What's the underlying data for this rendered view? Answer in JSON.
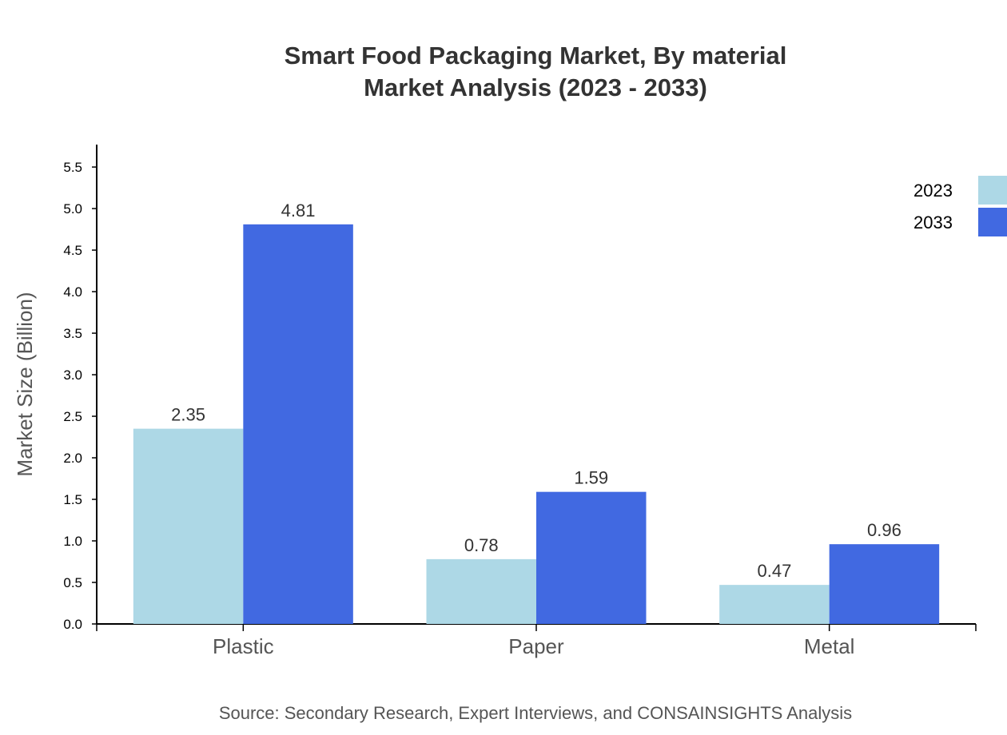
{
  "chart_data": {
    "type": "bar",
    "title": "Smart Food Packaging Market, By material",
    "subtitle": "Market Analysis (2023 - 2033)",
    "xlabel": "",
    "ylabel": "Market Size (Billion)",
    "categories": [
      "Plastic",
      "Paper",
      "Metal"
    ],
    "series": [
      {
        "name": "2023",
        "color": "#add8e6",
        "values": [
          2.35,
          0.78,
          0.47
        ]
      },
      {
        "name": "2033",
        "color": "#4169e1",
        "values": [
          4.81,
          1.59,
          0.96
        ]
      }
    ],
    "ylim": [
      0,
      5.77
    ],
    "yticks": [
      "0.0",
      "0.5",
      "1.0",
      "1.5",
      "2.0",
      "2.5",
      "3.0",
      "3.5",
      "4.0",
      "4.5",
      "5.0",
      "5.5"
    ],
    "grid": false,
    "legend": "top-right",
    "source": "Source: Secondary Research, Expert Interviews, and CONSAINSIGHTS Analysis"
  }
}
